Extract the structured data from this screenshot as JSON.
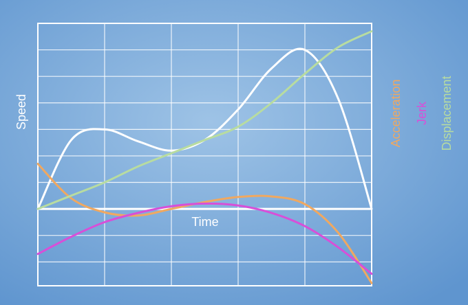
{
  "chart_data": {
    "type": "line",
    "x_label": "Time",
    "y_label": "Speed",
    "x": [
      0,
      0.5,
      1,
      1.5,
      2,
      2.5,
      3,
      3.5,
      4,
      4.5,
      5
    ],
    "series": [
      {
        "color": "#ffffff",
        "values": [
          0,
          2.6,
          3.0,
          2.55,
          2.2,
          2.6,
          3.75,
          5.3,
          6.0,
          4.15,
          0
        ]
      },
      {
        "name": "Acceleration",
        "color": "#f0a860",
        "values": [
          1.7,
          0.4,
          -0.13,
          -0.25,
          0,
          0.26,
          0.45,
          0.47,
          0.18,
          -0.9,
          -2.8
        ]
      },
      {
        "name": "Jerk",
        "color": "#d84fd8",
        "values": [
          -1.7,
          -1.05,
          -0.5,
          -0.15,
          0.1,
          0.2,
          0.13,
          -0.15,
          -0.65,
          -1.45,
          -2.45
        ]
      },
      {
        "name": "Displacement",
        "color": "#b8dca0",
        "values": [
          0,
          0.5,
          1.0,
          1.6,
          2.1,
          2.6,
          3.1,
          4.0,
          5.1,
          6.1,
          6.7
        ]
      }
    ],
    "xlim": [
      0,
      5
    ],
    "xticks": [
      0,
      1,
      2,
      3,
      4,
      5
    ],
    "ylim": [
      -2.9,
      7
    ],
    "yticks": [
      -2,
      -1,
      0,
      1,
      2,
      3,
      4,
      5,
      6,
      7
    ],
    "grid": true
  }
}
